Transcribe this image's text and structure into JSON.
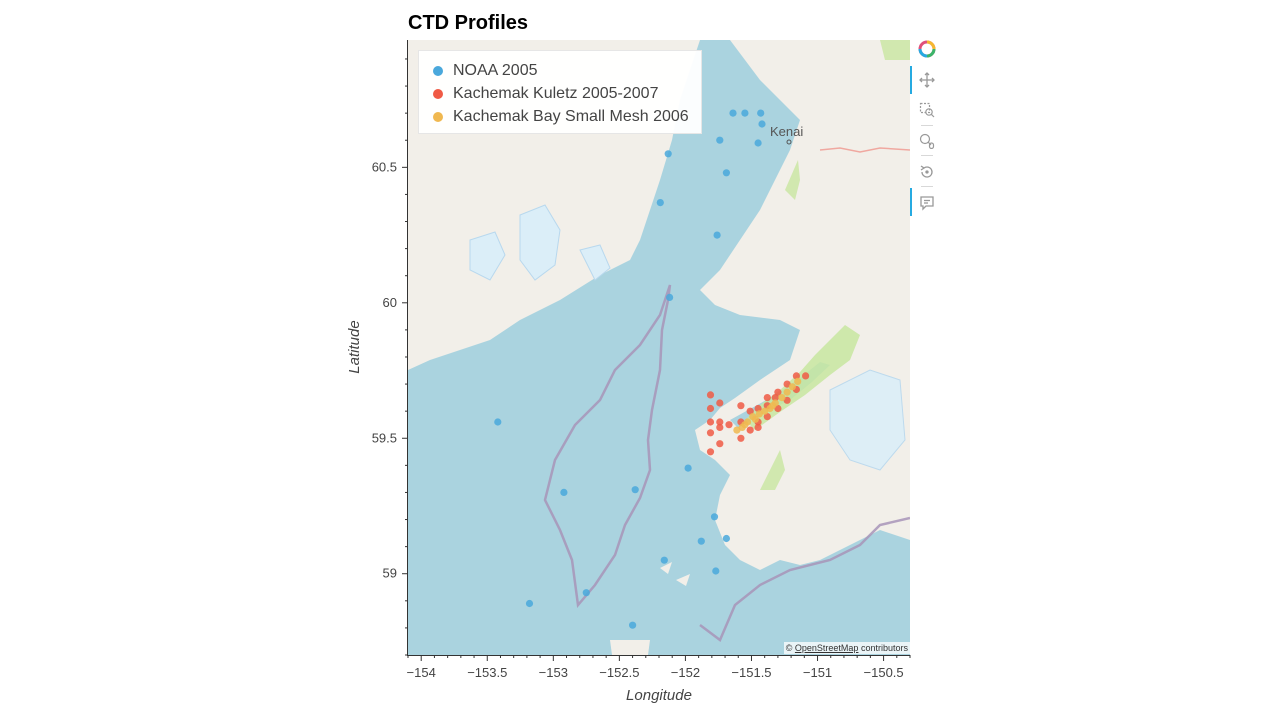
{
  "title": "CTD Profiles",
  "map": {
    "tiles": "OpenStreetMap",
    "place_label": "Kenai",
    "colors": {
      "water": "#aad3df",
      "land": "#f2efe9",
      "park": "#c8e6a0",
      "glacier": "#dbeef8",
      "boundary": "#a894b8"
    },
    "attribution": {
      "prefix": "©",
      "link": "OpenStreetMap",
      "suffix": "contributors"
    }
  },
  "legend": {
    "placement": "top-left",
    "items": [
      {
        "label": "NOAA 2005",
        "color": "#4aa8dc"
      },
      {
        "label": "Kachemak Kuletz 2005-2007",
        "color": "#f05a45"
      },
      {
        "label": "Kachemak Bay Small Mesh 2006",
        "color": "#f0b850"
      }
    ]
  },
  "toolbar": {
    "tools": [
      {
        "name": "bokeh-logo-icon",
        "interactive": true
      },
      {
        "name": "pan-tool-icon",
        "interactive": true,
        "active": true
      },
      {
        "name": "box-zoom-tool-icon",
        "interactive": true
      },
      {
        "name": "wheel-zoom-tool-icon",
        "interactive": true
      },
      {
        "name": "reset-tool-icon",
        "interactive": true
      },
      {
        "name": "hover-tool-icon",
        "interactive": true,
        "active": true
      }
    ]
  },
  "chart_data": {
    "type": "scatter",
    "xlabel": "Longitude",
    "ylabel": "Latitude",
    "xlim": [
      -154.1,
      -150.3
    ],
    "ylim": [
      58.7,
      60.97
    ],
    "x_ticks": [
      -154,
      -153.5,
      -153,
      -152.5,
      -152,
      -151.5,
      -151,
      -150.5
    ],
    "x_tick_labels": [
      "−154",
      "−153.5",
      "−153",
      "−152.5",
      "−152",
      "−151.5",
      "−151",
      "−150.5"
    ],
    "y_ticks": [
      59,
      59.5,
      60,
      60.5
    ],
    "y_tick_labels": [
      "59",
      "59.5",
      "60",
      "60.5"
    ],
    "grid": false,
    "legend_placement": "top-left",
    "series": [
      {
        "name": "NOAA 2005",
        "color": "#4aa8dc",
        "points": [
          [
            -151.64,
            60.7
          ],
          [
            -151.55,
            60.7
          ],
          [
            -151.43,
            60.7
          ],
          [
            -151.42,
            60.66
          ],
          [
            -151.74,
            60.6
          ],
          [
            -151.45,
            60.59
          ],
          [
            -152.13,
            60.55
          ],
          [
            -151.69,
            60.48
          ],
          [
            -152.19,
            60.37
          ],
          [
            -151.76,
            60.25
          ],
          [
            -152.12,
            60.02
          ],
          [
            -153.42,
            59.56
          ],
          [
            -151.98,
            59.39
          ],
          [
            -152.38,
            59.31
          ],
          [
            -152.92,
            59.3
          ],
          [
            -151.78,
            59.21
          ],
          [
            -151.69,
            59.13
          ],
          [
            -151.88,
            59.12
          ],
          [
            -152.16,
            59.05
          ],
          [
            -151.77,
            59.01
          ],
          [
            -152.75,
            58.93
          ],
          [
            -153.18,
            58.89
          ],
          [
            -152.4,
            58.81
          ]
        ]
      },
      {
        "name": "Kachemak Kuletz 2005-2007",
        "color": "#f05a45",
        "points": [
          [
            -151.81,
            59.66
          ],
          [
            -151.81,
            59.61
          ],
          [
            -151.74,
            59.63
          ],
          [
            -151.58,
            59.62
          ],
          [
            -151.81,
            59.56
          ],
          [
            -151.74,
            59.56
          ],
          [
            -151.67,
            59.55
          ],
          [
            -151.58,
            59.56
          ],
          [
            -151.81,
            59.52
          ],
          [
            -151.74,
            59.54
          ],
          [
            -151.74,
            59.48
          ],
          [
            -151.81,
            59.45
          ],
          [
            -151.58,
            59.5
          ],
          [
            -151.51,
            59.53
          ],
          [
            -151.51,
            59.6
          ],
          [
            -151.45,
            59.61
          ],
          [
            -151.45,
            59.56
          ],
          [
            -151.38,
            59.62
          ],
          [
            -151.38,
            59.65
          ],
          [
            -151.38,
            59.58
          ],
          [
            -151.3,
            59.61
          ],
          [
            -151.3,
            59.67
          ],
          [
            -151.23,
            59.64
          ],
          [
            -151.23,
            59.7
          ],
          [
            -151.16,
            59.68
          ],
          [
            -151.16,
            59.73
          ],
          [
            -151.09,
            59.73
          ],
          [
            -151.45,
            59.54
          ],
          [
            -151.32,
            59.65
          ]
        ]
      },
      {
        "name": "Kachemak Bay Small Mesh 2006",
        "color": "#f0b850",
        "points": [
          [
            -151.61,
            59.53
          ],
          [
            -151.57,
            59.54
          ],
          [
            -151.53,
            59.56
          ],
          [
            -151.49,
            59.58
          ],
          [
            -151.44,
            59.59
          ],
          [
            -151.4,
            59.6
          ],
          [
            -151.36,
            59.61
          ],
          [
            -151.32,
            59.63
          ],
          [
            -151.27,
            59.65
          ],
          [
            -151.23,
            59.67
          ],
          [
            -151.19,
            59.69
          ],
          [
            -151.15,
            59.71
          ],
          [
            -151.55,
            59.55
          ],
          [
            -151.47,
            59.57
          ],
          [
            -151.34,
            59.62
          ]
        ]
      }
    ]
  }
}
